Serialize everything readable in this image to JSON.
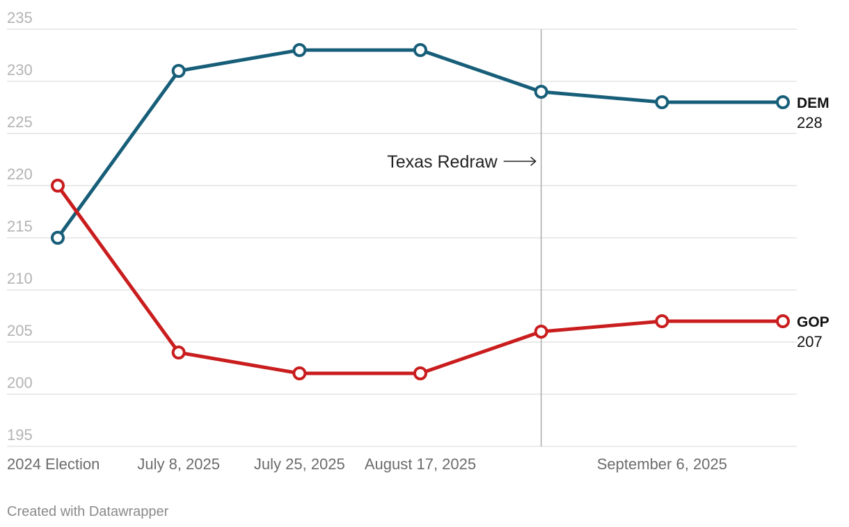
{
  "chart_data": {
    "type": "line",
    "categories": [
      "2024 Election",
      "July 8, 2025",
      "July 25, 2025",
      "August 17, 2025",
      "",
      "September 6, 2025",
      ""
    ],
    "series": [
      {
        "name": "DEM",
        "color": "#175e79",
        "values": [
          215,
          231,
          233,
          233,
          229,
          228,
          228
        ],
        "end_label": "228"
      },
      {
        "name": "GOP",
        "color": "#c91d1e",
        "values": [
          220,
          204,
          202,
          202,
          206,
          207,
          207
        ],
        "end_label": "207"
      }
    ],
    "ylim": [
      195,
      235
    ],
    "yticks": [
      195,
      200,
      205,
      210,
      215,
      220,
      225,
      230,
      235
    ],
    "grid": true,
    "annotation": {
      "text": "Texas Redraw",
      "arrow": "→",
      "at_category_index": 4
    },
    "legend": "direct labels at line ends"
  },
  "footer": {
    "credit": "Created with Datawrapper"
  }
}
